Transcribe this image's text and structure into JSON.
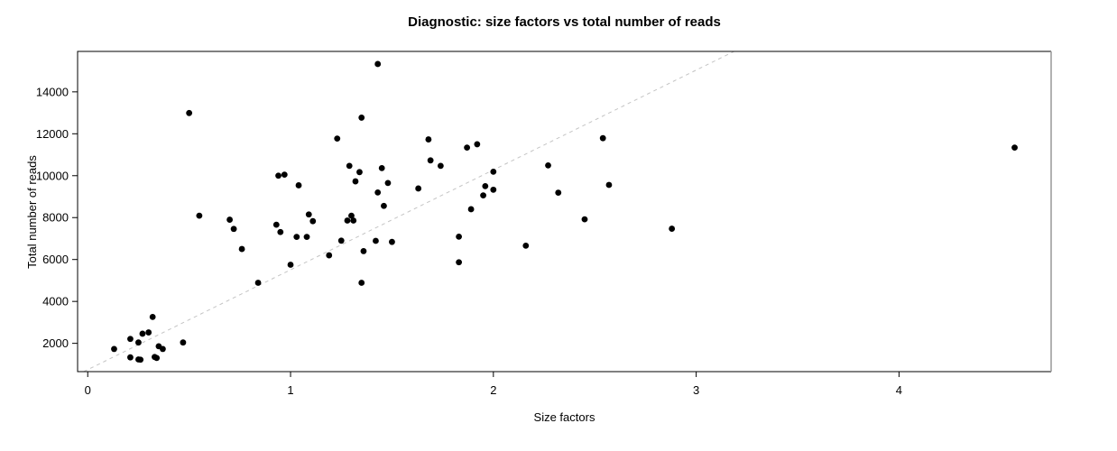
{
  "chart_data": {
    "type": "scatter",
    "title": "Diagnostic: size factors vs total number of reads",
    "xlabel": "Size factors",
    "ylabel": "Total number of reads",
    "xlim": [
      -0.05,
      4.75
    ],
    "ylim": [
      650,
      15930
    ],
    "x_ticks": [
      0,
      1,
      2,
      3,
      4
    ],
    "y_ticks": [
      2000,
      4000,
      6000,
      8000,
      10000,
      12000,
      14000
    ],
    "grid": false,
    "legend": "none",
    "marker": {
      "shape": "filled-circle",
      "color": "#000000",
      "radius_px": 3.4
    },
    "trendline": {
      "type": "linear",
      "style": "dashed",
      "color": "#c4c4c4",
      "slope": 4765,
      "intercept": 744
    },
    "points": [
      [
        0.13,
        1730
      ],
      [
        0.21,
        2210
      ],
      [
        0.21,
        1330
      ],
      [
        0.25,
        2040
      ],
      [
        0.25,
        1230
      ],
      [
        0.26,
        1220
      ],
      [
        0.27,
        2460
      ],
      [
        0.3,
        2520
      ],
      [
        0.32,
        3260
      ],
      [
        0.33,
        1350
      ],
      [
        0.34,
        1300
      ],
      [
        0.35,
        1860
      ],
      [
        0.37,
        1730
      ],
      [
        0.47,
        2040
      ],
      [
        0.5,
        12990
      ],
      [
        0.55,
        8090
      ],
      [
        0.7,
        7900
      ],
      [
        0.72,
        7460
      ],
      [
        0.76,
        6500
      ],
      [
        0.84,
        4890
      ],
      [
        0.93,
        7660
      ],
      [
        0.94,
        10000
      ],
      [
        0.95,
        7310
      ],
      [
        0.97,
        10050
      ],
      [
        1.0,
        5750
      ],
      [
        1.03,
        7080
      ],
      [
        1.04,
        9540
      ],
      [
        1.08,
        7080
      ],
      [
        1.09,
        8150
      ],
      [
        1.11,
        7830
      ],
      [
        1.19,
        6200
      ],
      [
        1.23,
        11770
      ],
      [
        1.25,
        6900
      ],
      [
        1.28,
        7860
      ],
      [
        1.29,
        10470
      ],
      [
        1.3,
        8090
      ],
      [
        1.31,
        7860
      ],
      [
        1.32,
        9730
      ],
      [
        1.34,
        10170
      ],
      [
        1.35,
        12770
      ],
      [
        1.35,
        4890
      ],
      [
        1.36,
        6400
      ],
      [
        1.42,
        6890
      ],
      [
        1.43,
        15330
      ],
      [
        1.43,
        9200
      ],
      [
        1.45,
        10360
      ],
      [
        1.46,
        8560
      ],
      [
        1.48,
        9650
      ],
      [
        1.5,
        6840
      ],
      [
        1.63,
        9390
      ],
      [
        1.68,
        11730
      ],
      [
        1.69,
        10730
      ],
      [
        1.74,
        10470
      ],
      [
        1.83,
        7090
      ],
      [
        1.83,
        5870
      ],
      [
        1.87,
        11340
      ],
      [
        1.89,
        8400
      ],
      [
        1.92,
        11500
      ],
      [
        1.95,
        9060
      ],
      [
        1.96,
        9500
      ],
      [
        2.0,
        10190
      ],
      [
        2.0,
        9330
      ],
      [
        2.16,
        6660
      ],
      [
        2.27,
        10490
      ],
      [
        2.32,
        9190
      ],
      [
        2.45,
        7920
      ],
      [
        2.54,
        11790
      ],
      [
        2.57,
        9560
      ],
      [
        2.88,
        7470
      ],
      [
        4.57,
        11340
      ]
    ]
  },
  "colors": {
    "background": "#ffffff",
    "point": "#000000",
    "box": "#000000",
    "box_right_edge": "#999999",
    "trend_line": "#c4c4c4",
    "text": "#000000"
  }
}
